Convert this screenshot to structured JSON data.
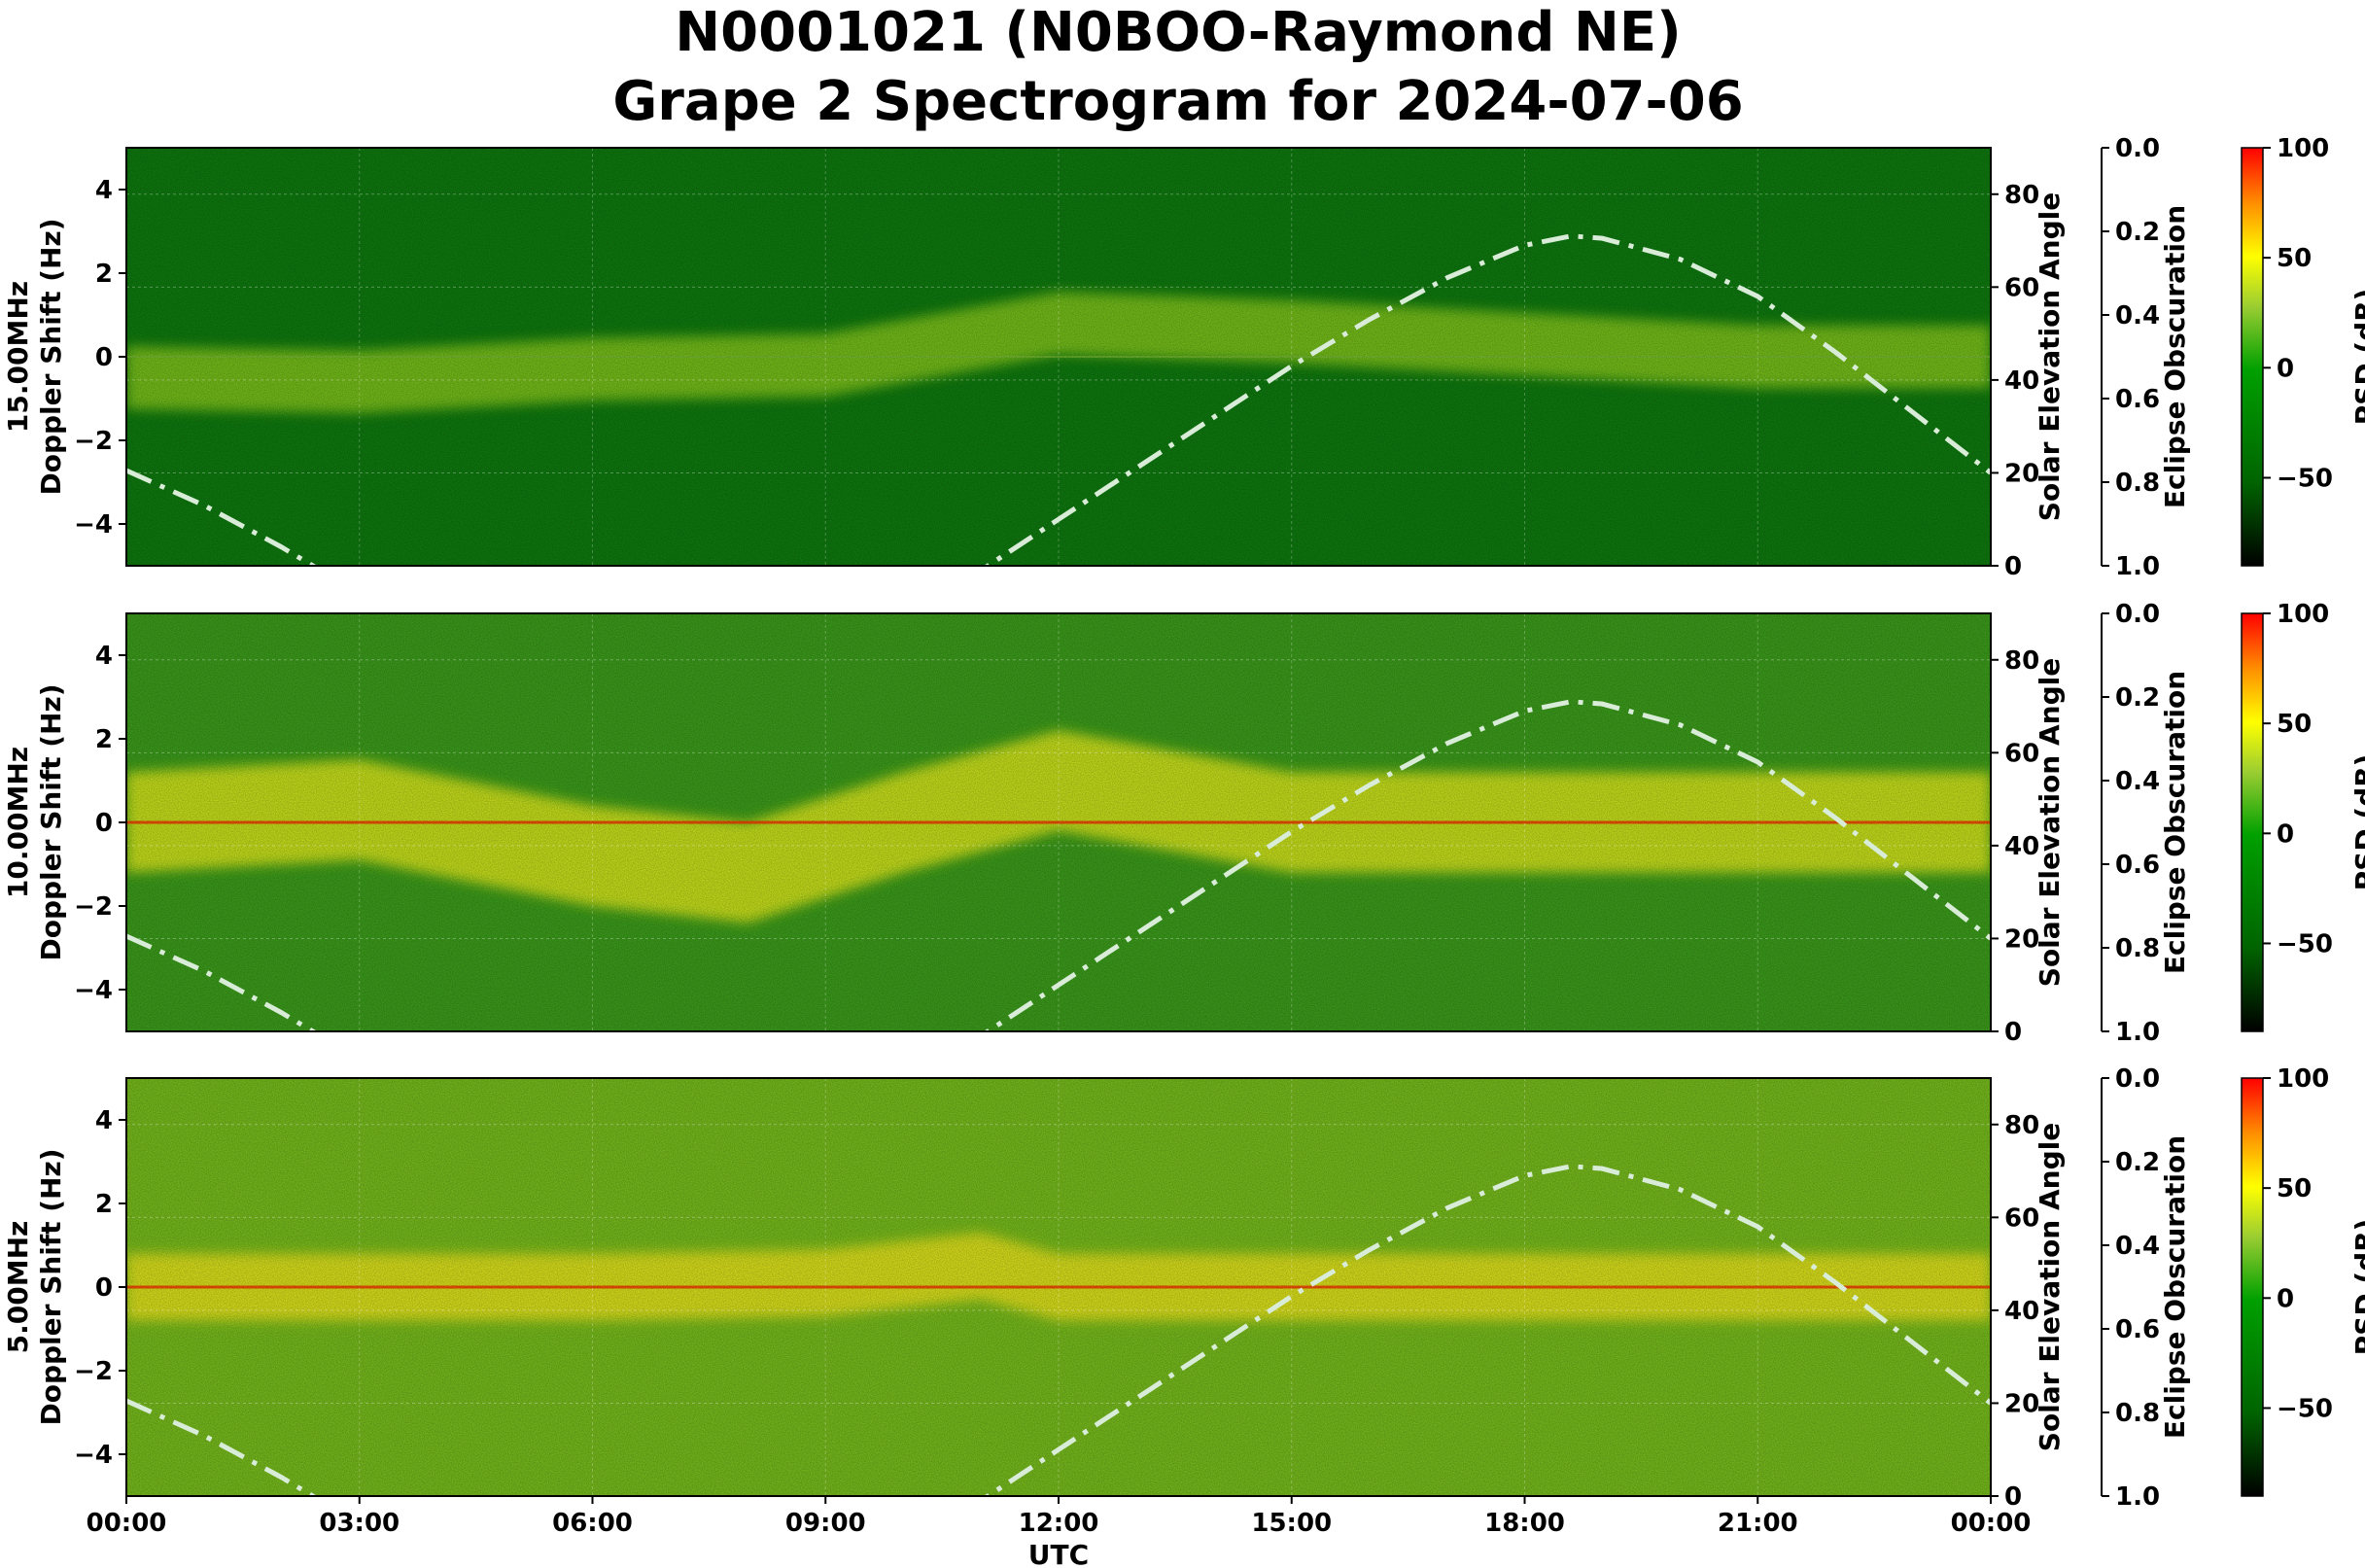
{
  "title": {
    "line1": "N0001021 (N0BOO-Raymond NE)",
    "line2": "Grape 2 Spectrogram for 2024-07-06"
  },
  "chart_data": {
    "type": "heatmap",
    "xlabel": "UTC",
    "x_ticks": [
      "00:00",
      "03:00",
      "06:00",
      "09:00",
      "12:00",
      "15:00",
      "18:00",
      "21:00",
      "00:00"
    ],
    "x_range_hours": [
      0,
      24
    ],
    "doppler_ylabel": "Doppler Shift (Hz)",
    "doppler_ylim": [
      -5,
      5
    ],
    "doppler_ticks": [
      4,
      2,
      0,
      -2,
      -4
    ],
    "solar_ylabel": "Solar Elevation Angle",
    "solar_ylim": [
      0,
      90
    ],
    "solar_ticks": [
      80,
      60,
      40,
      20,
      0
    ],
    "eclipse_ylabel": "Eclipse Obscuration",
    "eclipse_ticks": [
      "0.0",
      "0.2",
      "0.4",
      "0.6",
      "0.8",
      "1.0"
    ],
    "colorbar_label": "PSD (dB)",
    "colorbar_ticks": [
      100,
      50,
      0,
      -50
    ],
    "colorbar_range": [
      -90,
      100
    ],
    "colormap": [
      "#000000",
      "#006400",
      "#00a000",
      "#9acd32",
      "#ffff00",
      "#ff8c00",
      "#ff0000"
    ],
    "solar_elevation_curve": {
      "style": "dash-dot",
      "color": "#d8ecd8",
      "points": [
        [
          0,
          20.5
        ],
        [
          1,
          13
        ],
        [
          2,
          4
        ],
        [
          3,
          -6
        ],
        [
          4,
          -16
        ],
        [
          5,
          -24
        ],
        [
          6,
          -29
        ],
        [
          7,
          -31
        ],
        [
          8,
          -28
        ],
        [
          9,
          -22
        ],
        [
          10,
          -12
        ],
        [
          11,
          -1
        ],
        [
          12,
          10
        ],
        [
          13,
          21
        ],
        [
          14,
          32
        ],
        [
          15,
          43
        ],
        [
          16,
          53
        ],
        [
          17,
          62
        ],
        [
          18,
          69
        ],
        [
          18.6,
          71
        ],
        [
          19,
          70.5
        ],
        [
          20,
          66
        ],
        [
          21,
          58
        ],
        [
          22,
          46
        ],
        [
          23,
          33
        ],
        [
          24,
          20
        ]
      ]
    },
    "panels": [
      {
        "label": "15.00MHz",
        "background": "#0f7f0f",
        "signal_band": {
          "color": "#8cd21e",
          "center_hz": [
            [
              0,
              -0.5
            ],
            [
              3,
              -0.6
            ],
            [
              6,
              -0.3
            ],
            [
              9,
              -0.2
            ],
            [
              12,
              0.8
            ],
            [
              15,
              0.6
            ],
            [
              18,
              0.3
            ],
            [
              21,
              0.0
            ],
            [
              24,
              0.0
            ]
          ],
          "width_hz": 1.5
        },
        "carrier_hz": 0.0,
        "carrier_color": null
      },
      {
        "label": "10.00MHz",
        "background": "#3ea31c",
        "signal_band": {
          "color": "#e8f51a",
          "center_hz": [
            [
              0,
              0.0
            ],
            [
              3,
              0.3
            ],
            [
              6,
              -0.8
            ],
            [
              8,
              -1.2
            ],
            [
              10,
              0.0
            ],
            [
              12,
              1.0
            ],
            [
              13.5,
              0.5
            ],
            [
              15,
              0.0
            ],
            [
              18,
              0.0
            ],
            [
              21,
              0.0
            ],
            [
              24,
              0.0
            ]
          ],
          "width_hz": 2.4
        },
        "carrier_hz": 0.0,
        "carrier_color": "#ff3a00"
      },
      {
        "label": "5.00MHz",
        "background": "#7cc41e",
        "signal_band": {
          "color": "#f5f01a",
          "center_hz": [
            [
              0,
              0.0
            ],
            [
              3,
              0.0
            ],
            [
              6,
              0.0
            ],
            [
              9,
              0.1
            ],
            [
              11,
              0.5
            ],
            [
              12,
              0.0
            ],
            [
              15,
              0.0
            ],
            [
              18,
              0.0
            ],
            [
              21,
              0.0
            ],
            [
              24,
              0.0
            ]
          ],
          "width_hz": 1.6
        },
        "carrier_hz": 0.0,
        "carrier_color": "#ff3a00"
      }
    ]
  }
}
